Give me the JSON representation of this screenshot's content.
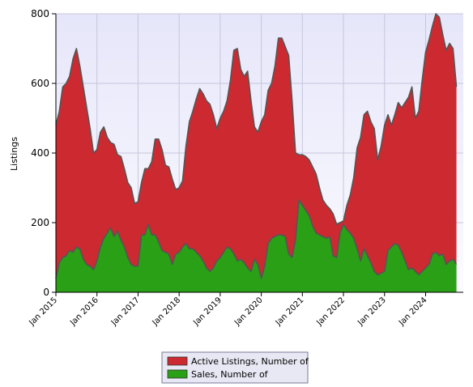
{
  "chart_data": {
    "type": "area",
    "title": "",
    "xlabel": "",
    "ylabel": "Listings",
    "ylim": [
      0,
      800
    ],
    "yticks": [
      0,
      200,
      400,
      600,
      800
    ],
    "grid": true,
    "legend_position": "bottom-center",
    "x_tick_labels": [
      "Jan 2015",
      "Jan 2016",
      "Jan 2017",
      "Jan 2018",
      "Jan 2019",
      "Jan 2020",
      "Jan 2021",
      "Jan 2022",
      "Jan 2023",
      "Jan 2024"
    ],
    "x_start": "2015-01",
    "x_end": "2024-12",
    "series": [
      {
        "name": "Active Listings, Number of",
        "color": "#cc2a30",
        "values": [
          480,
          520,
          590,
          600,
          620,
          670,
          700,
          650,
          590,
          530,
          470,
          400,
          410,
          460,
          475,
          445,
          430,
          425,
          395,
          390,
          355,
          315,
          300,
          255,
          260,
          315,
          355,
          355,
          375,
          440,
          440,
          410,
          365,
          360,
          325,
          295,
          300,
          320,
          420,
          490,
          520,
          555,
          585,
          570,
          550,
          540,
          510,
          470,
          500,
          520,
          550,
          610,
          695,
          700,
          640,
          620,
          635,
          550,
          475,
          460,
          490,
          510,
          580,
          600,
          650,
          730,
          730,
          705,
          680,
          550,
          400,
          395,
          395,
          390,
          380,
          360,
          340,
          300,
          265,
          250,
          240,
          225,
          195,
          200,
          205,
          250,
          280,
          330,
          415,
          445,
          510,
          520,
          490,
          470,
          380,
          420,
          480,
          510,
          480,
          510,
          545,
          530,
          545,
          560,
          590,
          500,
          520,
          610,
          690,
          725,
          765,
          800,
          790,
          740,
          695,
          715,
          700,
          590
        ]
      },
      {
        "name": "Sales, Number of",
        "color": "#2aa016",
        "values": [
          40,
          85,
          100,
          105,
          120,
          115,
          130,
          125,
          95,
          80,
          75,
          65,
          90,
          130,
          155,
          170,
          185,
          160,
          175,
          150,
          130,
          100,
          80,
          75,
          75,
          165,
          165,
          195,
          165,
          165,
          145,
          120,
          115,
          110,
          80,
          110,
          115,
          130,
          140,
          125,
          125,
          115,
          105,
          90,
          70,
          60,
          70,
          90,
          100,
          115,
          130,
          125,
          110,
          90,
          95,
          85,
          70,
          60,
          95,
          80,
          40,
          75,
          140,
          155,
          160,
          165,
          165,
          160,
          110,
          100,
          150,
          265,
          250,
          235,
          220,
          190,
          170,
          165,
          160,
          155,
          160,
          105,
          100,
          170,
          195,
          180,
          170,
          155,
          125,
          90,
          125,
          105,
          85,
          60,
          50,
          55,
          60,
          120,
          130,
          140,
          135,
          115,
          90,
          65,
          70,
          60,
          50,
          60,
          70,
          80,
          110,
          115,
          105,
          110,
          80,
          90,
          95,
          80
        ]
      }
    ]
  }
}
